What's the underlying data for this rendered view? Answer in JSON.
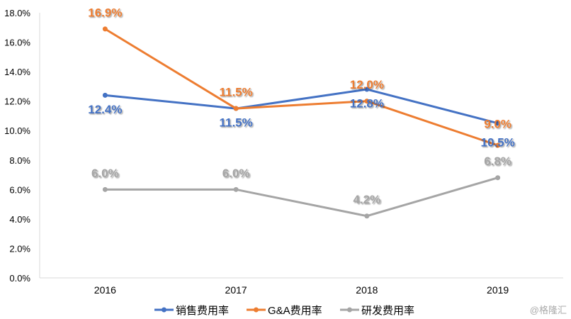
{
  "chart_data": {
    "type": "line",
    "categories": [
      "2016",
      "2017",
      "2018",
      "2019"
    ],
    "ylim": [
      0,
      18
    ],
    "yticks": [
      "0.0%",
      "2.0%",
      "4.0%",
      "6.0%",
      "8.0%",
      "10.0%",
      "12.0%",
      "14.0%",
      "16.0%",
      "18.0%"
    ],
    "grid": false,
    "legend": "bottom",
    "series": [
      {
        "name": "销售费用率",
        "values": [
          12.4,
          11.5,
          12.8,
          10.5
        ],
        "labels": [
          "12.4%",
          "11.5%",
          "12.8%",
          "10.5%"
        ],
        "color": "#4472C4",
        "label_side": [
          "below",
          "below",
          "below",
          "below"
        ]
      },
      {
        "name": "G&A费用率",
        "values": [
          16.9,
          11.5,
          12.0,
          9.0
        ],
        "labels": [
          "16.9%",
          "11.5%",
          "12.0%",
          "9.0%"
        ],
        "color": "#ED7D31",
        "label_side": [
          "above",
          "above",
          "above",
          "above"
        ]
      },
      {
        "name": "研发费用率",
        "values": [
          6.0,
          6.0,
          4.2,
          6.8
        ],
        "labels": [
          "6.0%",
          "6.0%",
          "4.2%",
          "6.8%"
        ],
        "color": "#A5A5A5",
        "label_side": [
          "above",
          "above",
          "above",
          "above"
        ]
      }
    ]
  },
  "watermark": "@格隆汇"
}
